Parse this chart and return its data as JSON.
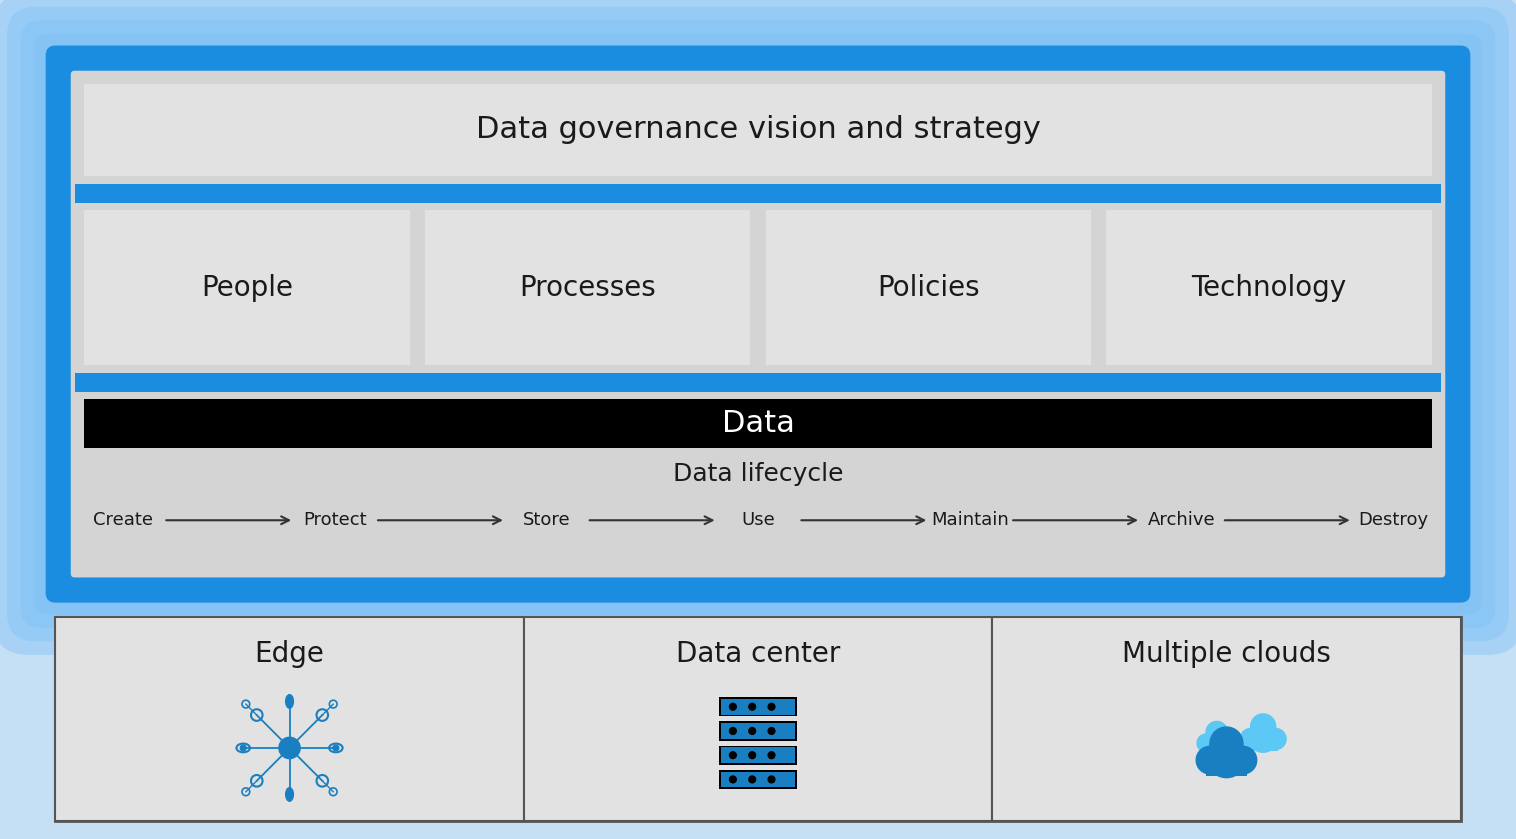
{
  "bg_color": "#c5dff5",
  "outer_blue": "#1b8de0",
  "outer_glow": "#6ab8f7",
  "inner_gray": "#d4d4d4",
  "box_gray": "#e2e2e2",
  "black_bar": "#000000",
  "white": "#ffffff",
  "dark_text": "#1a1a1a",
  "blue_icon": "#1a7fc0",
  "blue_light_icon": "#5bc8f5",
  "blue_dark_icon": "#0d5ea8",
  "title_top": "Data governance vision and strategy",
  "pillars": [
    "People",
    "Processes",
    "Policies",
    "Technology"
  ],
  "data_label": "Data",
  "lifecycle_label": "Data lifecycle",
  "lifecycle_steps": [
    "Create",
    "Protect",
    "Store",
    "Use",
    "Maintain",
    "Archive",
    "Destroy"
  ],
  "bottom_labels": [
    "Edge",
    "Data center",
    "Multiple clouds"
  ],
  "font_size_title": 22,
  "font_size_pillar": 20,
  "font_size_data": 22,
  "font_size_lifecycle": 18,
  "font_size_steps": 13,
  "font_size_bottom": 20
}
